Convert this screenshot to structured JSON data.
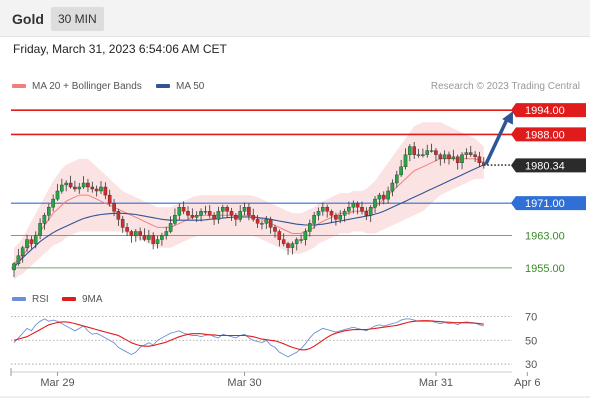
{
  "header": {
    "title": "Gold",
    "interval": "30 MIN"
  },
  "datetime": "Friday, March 31, 2023 6:54:06 AM CET",
  "legend": {
    "main": [
      {
        "label": "MA 20 + Bollinger Bands",
        "color": "#f08080"
      },
      {
        "label": "MA 50",
        "color": "#2f5597"
      }
    ],
    "rsi": [
      {
        "label": "RSI",
        "color": "#6b8fd6"
      },
      {
        "label": "9MA",
        "color": "#e01b1b"
      }
    ]
  },
  "credit": "Research © 2023 Trading Central",
  "chart_data": [
    {
      "type": "candlestick",
      "ylim": [
        1952,
        1998
      ],
      "resistance_levels": [
        {
          "value": 1994.0,
          "label": "1994.00",
          "color": "#e01b1b"
        },
        {
          "value": 1988.0,
          "label": "1988.00",
          "color": "#e01b1b"
        }
      ],
      "pivot_level": {
        "value": 1971.0,
        "label": "1971.00",
        "color": "#2f6fd6"
      },
      "support_levels": [
        {
          "value": 1963.0,
          "label": "1963.00",
          "color": "#6aaa6a",
          "text_color": "#3a8a2a"
        },
        {
          "value": 1955.0,
          "label": "1955.00",
          "color": "#6aaa6a",
          "text_color": "#3a8a2a"
        }
      ],
      "last_price": {
        "value": 1980.34,
        "label": "1980.34"
      },
      "forecast_target": 1994.0,
      "x_ticks": [
        {
          "index": 10,
          "label": "Mar 29"
        },
        {
          "index": 53,
          "label": "Mar 30"
        },
        {
          "index": 97,
          "label": "Mar 31"
        },
        {
          "index": 118,
          "label": "Apr 6"
        }
      ],
      "closes": [
        1956,
        1958,
        1960,
        1962,
        1961,
        1963,
        1966,
        1968,
        1970,
        1972,
        1974,
        1975.5,
        1976,
        1975,
        1974.5,
        1975,
        1976,
        1975,
        1974.5,
        1974,
        1975,
        1973,
        1971,
        1969,
        1967,
        1965,
        1964,
        1963,
        1964,
        1963,
        1962,
        1963,
        1961,
        1962,
        1963,
        1964,
        1966,
        1968,
        1970,
        1969,
        1968,
        1967.5,
        1968,
        1969,
        1969,
        1968,
        1967,
        1969,
        1970,
        1969,
        1968,
        1967,
        1969,
        1970,
        1968,
        1967,
        1966,
        1966,
        1967,
        1965,
        1964,
        1962,
        1961,
        1960,
        1961,
        1962,
        1962,
        1964,
        1966,
        1968,
        1969,
        1970,
        1969,
        1968,
        1967,
        1968,
        1969,
        1970,
        1971,
        1970,
        1969,
        1968,
        1970,
        1972,
        1973,
        1972,
        1974,
        1976,
        1978,
        1980,
        1983,
        1985,
        1983,
        1983,
        1983,
        1984,
        1984,
        1983,
        1982,
        1983,
        1982,
        1982.5,
        1981,
        1983,
        1983.5,
        1983,
        1982.5,
        1981,
        1980.34
      ],
      "ma20": [
        1956,
        1957,
        1958,
        1959.5,
        1961,
        1962.5,
        1964,
        1965.5,
        1967,
        1968.5,
        1969.5,
        1970.5,
        1971.5,
        1972,
        1972.5,
        1973,
        1973,
        1973,
        1972.5,
        1972,
        1971.5,
        1971,
        1970.5,
        1970,
        1969.5,
        1969,
        1968.5,
        1968,
        1967.5,
        1967,
        1966.5,
        1966,
        1965.5,
        1965,
        1965,
        1965,
        1965,
        1965.5,
        1966,
        1966.5,
        1967,
        1967.5,
        1967.8,
        1968,
        1968,
        1968,
        1968,
        1968,
        1968,
        1968,
        1968,
        1968,
        1968,
        1968,
        1968,
        1967.8,
        1967.5,
        1967,
        1966.5,
        1966,
        1965.5,
        1965,
        1964.5,
        1964,
        1963.5,
        1963.5,
        1963.5,
        1964,
        1964.5,
        1965,
        1966,
        1966.5,
        1967,
        1967.5,
        1968,
        1968.5,
        1968.5,
        1968.5,
        1969,
        1969,
        1969,
        1969,
        1969.5,
        1970,
        1971,
        1972,
        1973,
        1974,
        1975,
        1976,
        1977,
        1978,
        1979,
        1979.5,
        1980,
        1980.5,
        1981,
        1981.5,
        1982,
        1982,
        1982,
        1982,
        1982,
        1982,
        1982,
        1982,
        1982,
        1981.5,
        1981
      ],
      "ma50": [
        1955,
        1956.5,
        1957.5,
        1958.5,
        1959.5,
        1960.5,
        1961.5,
        1962.3,
        1963,
        1963.7,
        1964.3,
        1964.8,
        1965.3,
        1965.8,
        1966.3,
        1966.8,
        1967.2,
        1967.5,
        1967.8,
        1968,
        1968.2,
        1968.3,
        1968.4,
        1968.5,
        1968.5,
        1968.5,
        1968.4,
        1968.3,
        1968.2,
        1968,
        1967.8,
        1967.6,
        1967.4,
        1967.2,
        1967,
        1966.9,
        1966.8,
        1966.8,
        1966.8,
        1966.8,
        1966.8,
        1966.8,
        1966.8,
        1966.8,
        1966.9,
        1967,
        1967.1,
        1967.2,
        1967.3,
        1967.4,
        1967.5,
        1967.6,
        1967.6,
        1967.6,
        1967.6,
        1967.5,
        1967.4,
        1967.3,
        1967.2,
        1967,
        1966.8,
        1966.6,
        1966.4,
        1966.2,
        1966,
        1965.8,
        1965.7,
        1965.6,
        1965.6,
        1965.6,
        1965.7,
        1965.8,
        1966,
        1966.2,
        1966.4,
        1966.6,
        1966.8,
        1967,
        1967.2,
        1967.4,
        1967.6,
        1967.8,
        1968,
        1968.3,
        1968.6,
        1969,
        1969.5,
        1970,
        1970.5,
        1971,
        1971.5,
        1972,
        1972.5,
        1973,
        1973.5,
        1974,
        1974.5,
        1975,
        1975.5,
        1976,
        1976.5,
        1977,
        1977.5,
        1978,
        1978.5,
        1979,
        1979.5,
        1980,
        1980.5
      ],
      "bb_half_width": [
        4,
        4,
        4.5,
        5,
        5.5,
        6,
        6.5,
        7,
        7.5,
        8,
        8.5,
        9,
        9,
        9,
        9,
        9,
        9,
        9,
        8.5,
        8,
        7.5,
        7,
        6.5,
        6,
        5.5,
        5,
        5,
        5,
        5,
        5,
        5,
        5,
        5,
        5,
        5,
        5,
        5,
        5,
        5,
        5,
        5,
        5,
        5,
        5,
        5,
        5,
        5,
        5,
        5,
        5,
        5,
        5,
        5,
        5,
        5,
        5,
        5,
        5,
        5,
        5,
        5,
        5,
        5,
        5,
        5,
        5,
        5,
        5,
        5,
        5,
        5,
        5,
        5,
        5,
        5,
        5,
        5,
        5,
        5,
        5,
        5,
        5.5,
        6,
        6.5,
        7,
        7.5,
        8,
        8.5,
        9,
        9.5,
        10,
        10.5,
        11,
        11,
        11,
        10.5,
        10,
        9.5,
        9,
        8.5,
        8,
        7.5,
        7,
        6.5,
        6,
        5.5,
        5,
        4.5,
        4
      ]
    },
    {
      "type": "line",
      "ylim": [
        25,
        78
      ],
      "y_ticks": [
        70,
        50,
        30
      ],
      "reference_lines": [
        70,
        50,
        30
      ],
      "series": [
        {
          "name": "RSI",
          "values": [
            48,
            52,
            56,
            60,
            58,
            63,
            66,
            68,
            66,
            67,
            66,
            64,
            62,
            60,
            58,
            60,
            62,
            58,
            55,
            56,
            54,
            52,
            50,
            48,
            44,
            42,
            40,
            38,
            40,
            44,
            46,
            48,
            46,
            50,
            52,
            54,
            56,
            57,
            58,
            56,
            55,
            54,
            54,
            53,
            54,
            55,
            53,
            52,
            55,
            54,
            53,
            52,
            54,
            55,
            52,
            50,
            49,
            48,
            50,
            46,
            44,
            40,
            38,
            36,
            38,
            40,
            43,
            47,
            52,
            56,
            58,
            60,
            59,
            58,
            57,
            58,
            59,
            60,
            61,
            60,
            59,
            58,
            60,
            62,
            63,
            62,
            63,
            64,
            65,
            67,
            68,
            68,
            67,
            66,
            66,
            66,
            66,
            65,
            64,
            65,
            64,
            64.5,
            63,
            65,
            65.5,
            65,
            64.5,
            63,
            62
          ]
        },
        {
          "name": "9MA",
          "values": [
            50,
            51,
            52,
            53,
            55,
            57,
            59,
            61,
            63,
            64,
            65,
            65.5,
            65.5,
            65,
            64,
            63,
            62,
            61,
            60,
            59,
            58,
            57,
            56,
            55,
            54,
            52,
            50,
            48,
            46.5,
            45.5,
            45,
            45,
            45.5,
            46.5,
            47.5,
            48.5,
            50,
            51.5,
            53,
            54,
            55,
            55.5,
            55.5,
            55.5,
            55,
            54.5,
            54.5,
            54,
            54,
            54,
            54,
            54,
            54,
            54,
            53.5,
            53,
            52,
            51,
            50.5,
            50,
            49.5,
            48.5,
            47,
            45.5,
            44,
            43,
            42,
            42,
            43,
            45,
            47.5,
            50,
            52.5,
            54.5,
            56,
            57,
            58,
            58.5,
            59,
            59,
            59,
            59,
            59.5,
            60,
            60.5,
            61,
            61.5,
            62,
            62.5,
            63.5,
            64.5,
            65.5,
            66,
            66.3,
            66.5,
            66.5,
            66.3,
            66,
            65.7,
            65.4,
            65.2,
            65,
            64.8,
            64.8,
            64.7,
            64.6,
            64.4,
            64,
            63.5
          ]
        }
      ]
    }
  ]
}
